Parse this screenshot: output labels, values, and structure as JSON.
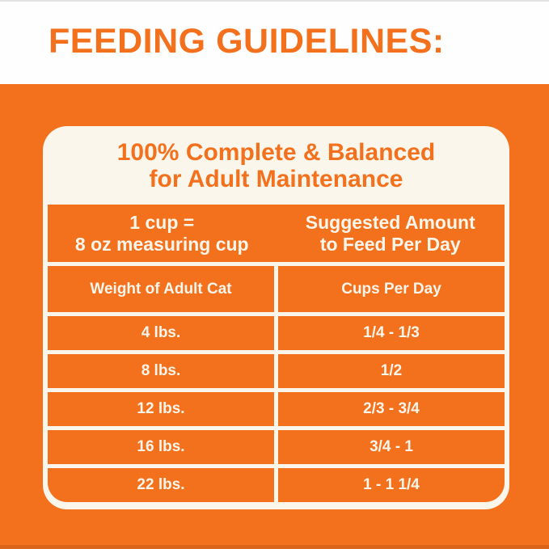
{
  "page": {
    "title": "FEEDING GUIDELINES:",
    "colors": {
      "orange": "#F3701D",
      "card_bg": "#FBF6EB",
      "header_bg": "#FEFEFE"
    }
  },
  "card": {
    "heading_line1": "100% Complete & Balanced",
    "heading_line2": "for Adult Maintenance",
    "info_band": {
      "left_line1": "1 cup =",
      "left_line2": "8 oz measuring cup",
      "right_line1": "Suggested Amount",
      "right_line2": "to Feed Per Day"
    },
    "table": {
      "columns": [
        "Weight of Adult Cat",
        "Cups Per Day"
      ],
      "rows": [
        {
          "weight": "4 lbs.",
          "cups": "1/4 - 1/3"
        },
        {
          "weight": "8 lbs.",
          "cups": "1/2"
        },
        {
          "weight": "12 lbs.",
          "cups": "2/3 - 3/4"
        },
        {
          "weight": "16 lbs.",
          "cups": "3/4 - 1"
        },
        {
          "weight": "22 lbs.",
          "cups": "1 - 1 1/4"
        }
      ]
    }
  }
}
